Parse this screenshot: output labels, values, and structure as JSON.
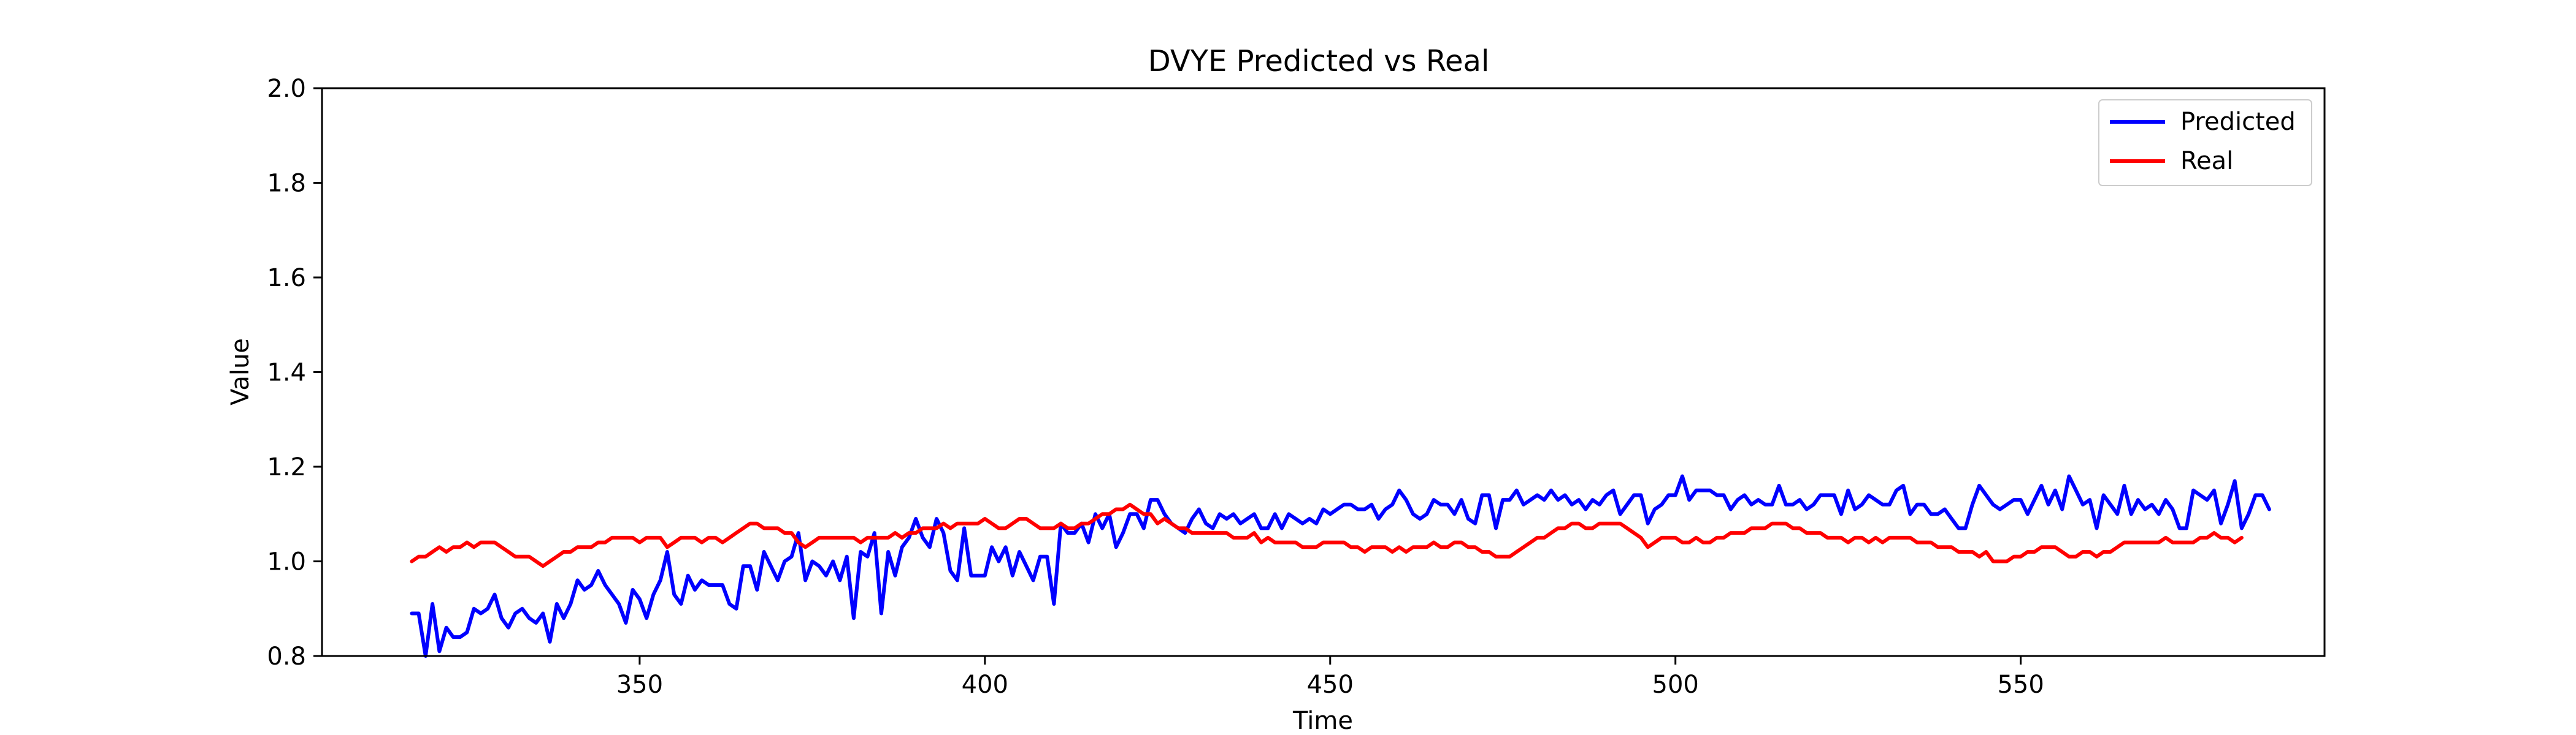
{
  "chart_data": {
    "type": "line",
    "title": "DVYE Predicted vs Real",
    "xlabel": "Time",
    "ylabel": "Value",
    "xlim": [
      304,
      594
    ],
    "ylim": [
      0.8,
      2.0
    ],
    "xticks": [
      350,
      400,
      450,
      500,
      550
    ],
    "yticks": [
      0.8,
      1.0,
      1.2,
      1.4,
      1.6,
      1.8,
      2.0
    ],
    "ytick_labels": [
      "0.8",
      "1.0",
      "1.2",
      "1.4",
      "1.6",
      "1.8",
      "2.0"
    ],
    "legend_position": "top-right",
    "grid": false,
    "x_start": 317,
    "series": [
      {
        "name": "Predicted",
        "color": "#0000ff",
        "values": [
          0.89,
          0.89,
          0.8,
          0.91,
          0.81,
          0.86,
          0.84,
          0.84,
          0.85,
          0.9,
          0.89,
          0.9,
          0.93,
          0.88,
          0.86,
          0.89,
          0.9,
          0.88,
          0.87,
          0.89,
          0.83,
          0.91,
          0.88,
          0.91,
          0.96,
          0.94,
          0.95,
          0.98,
          0.95,
          0.93,
          0.91,
          0.87,
          0.94,
          0.92,
          0.88,
          0.93,
          0.96,
          1.02,
          0.93,
          0.91,
          0.97,
          0.94,
          0.96,
          0.95,
          0.95,
          0.95,
          0.91,
          0.9,
          0.99,
          0.99,
          0.94,
          1.02,
          0.99,
          0.96,
          1.0,
          1.01,
          1.06,
          0.96,
          1.0,
          0.99,
          0.97,
          1.0,
          0.96,
          1.01,
          0.88,
          1.02,
          1.01,
          1.06,
          0.89,
          1.02,
          0.97,
          1.03,
          1.05,
          1.09,
          1.05,
          1.03,
          1.09,
          1.06,
          0.98,
          0.96,
          1.07,
          0.97,
          0.97,
          0.97,
          1.03,
          1.0,
          1.03,
          0.97,
          1.02,
          0.99,
          0.96,
          1.01,
          1.01,
          0.91,
          1.08,
          1.06,
          1.06,
          1.08,
          1.04,
          1.1,
          1.07,
          1.1,
          1.03,
          1.06,
          1.1,
          1.1,
          1.07,
          1.13,
          1.13,
          1.1,
          1.08,
          1.07,
          1.06,
          1.09,
          1.11,
          1.08,
          1.07,
          1.1,
          1.09,
          1.1,
          1.08,
          1.09,
          1.1,
          1.07,
          1.07,
          1.1,
          1.07,
          1.1,
          1.09,
          1.08,
          1.09,
          1.08,
          1.11,
          1.1,
          1.11,
          1.12,
          1.12,
          1.11,
          1.11,
          1.12,
          1.09,
          1.11,
          1.12,
          1.15,
          1.13,
          1.1,
          1.09,
          1.1,
          1.13,
          1.12,
          1.12,
          1.1,
          1.13,
          1.09,
          1.08,
          1.14,
          1.14,
          1.07,
          1.13,
          1.13,
          1.15,
          1.12,
          1.13,
          1.14,
          1.13,
          1.15,
          1.13,
          1.14,
          1.12,
          1.13,
          1.11,
          1.13,
          1.12,
          1.14,
          1.15,
          1.1,
          1.12,
          1.14,
          1.14,
          1.08,
          1.11,
          1.12,
          1.14,
          1.14,
          1.18,
          1.13,
          1.15,
          1.15,
          1.15,
          1.14,
          1.14,
          1.11,
          1.13,
          1.14,
          1.12,
          1.13,
          1.12,
          1.12,
          1.16,
          1.12,
          1.12,
          1.13,
          1.11,
          1.12,
          1.14,
          1.14,
          1.14,
          1.1,
          1.15,
          1.11,
          1.12,
          1.14,
          1.13,
          1.12,
          1.12,
          1.15,
          1.16,
          1.1,
          1.12,
          1.12,
          1.1,
          1.1,
          1.11,
          1.09,
          1.07,
          1.07,
          1.12,
          1.16,
          1.14,
          1.12,
          1.11,
          1.12,
          1.13,
          1.13,
          1.1,
          1.13,
          1.16,
          1.12,
          1.15,
          1.11,
          1.18,
          1.15,
          1.12,
          1.13,
          1.07,
          1.14,
          1.12,
          1.1,
          1.16,
          1.1,
          1.13,
          1.11,
          1.12,
          1.1,
          1.13,
          1.11,
          1.07,
          1.07,
          1.15,
          1.14,
          1.13,
          1.15,
          1.08,
          1.12,
          1.17,
          1.07,
          1.1,
          1.14,
          1.14,
          1.11
        ]
      },
      {
        "name": "Real",
        "color": "#ff0000",
        "values": [
          1.0,
          1.01,
          1.01,
          1.02,
          1.03,
          1.02,
          1.03,
          1.03,
          1.04,
          1.03,
          1.04,
          1.04,
          1.04,
          1.03,
          1.02,
          1.01,
          1.01,
          1.01,
          1.0,
          0.99,
          1.0,
          1.01,
          1.02,
          1.02,
          1.03,
          1.03,
          1.03,
          1.04,
          1.04,
          1.05,
          1.05,
          1.05,
          1.05,
          1.04,
          1.05,
          1.05,
          1.05,
          1.03,
          1.04,
          1.05,
          1.05,
          1.05,
          1.04,
          1.05,
          1.05,
          1.04,
          1.05,
          1.06,
          1.07,
          1.08,
          1.08,
          1.07,
          1.07,
          1.07,
          1.06,
          1.06,
          1.04,
          1.03,
          1.04,
          1.05,
          1.05,
          1.05,
          1.05,
          1.05,
          1.05,
          1.04,
          1.05,
          1.05,
          1.05,
          1.05,
          1.06,
          1.05,
          1.06,
          1.06,
          1.07,
          1.07,
          1.07,
          1.08,
          1.07,
          1.08,
          1.08,
          1.08,
          1.08,
          1.09,
          1.08,
          1.07,
          1.07,
          1.08,
          1.09,
          1.09,
          1.08,
          1.07,
          1.07,
          1.07,
          1.08,
          1.07,
          1.07,
          1.08,
          1.08,
          1.09,
          1.1,
          1.1,
          1.11,
          1.11,
          1.12,
          1.11,
          1.1,
          1.1,
          1.08,
          1.09,
          1.08,
          1.07,
          1.07,
          1.06,
          1.06,
          1.06,
          1.06,
          1.06,
          1.06,
          1.05,
          1.05,
          1.05,
          1.06,
          1.04,
          1.05,
          1.04,
          1.04,
          1.04,
          1.04,
          1.03,
          1.03,
          1.03,
          1.04,
          1.04,
          1.04,
          1.04,
          1.03,
          1.03,
          1.02,
          1.03,
          1.03,
          1.03,
          1.02,
          1.03,
          1.02,
          1.03,
          1.03,
          1.03,
          1.04,
          1.03,
          1.03,
          1.04,
          1.04,
          1.03,
          1.03,
          1.02,
          1.02,
          1.01,
          1.01,
          1.01,
          1.02,
          1.03,
          1.04,
          1.05,
          1.05,
          1.06,
          1.07,
          1.07,
          1.08,
          1.08,
          1.07,
          1.07,
          1.08,
          1.08,
          1.08,
          1.08,
          1.07,
          1.06,
          1.05,
          1.03,
          1.04,
          1.05,
          1.05,
          1.05,
          1.04,
          1.04,
          1.05,
          1.04,
          1.04,
          1.05,
          1.05,
          1.06,
          1.06,
          1.06,
          1.07,
          1.07,
          1.07,
          1.08,
          1.08,
          1.08,
          1.07,
          1.07,
          1.06,
          1.06,
          1.06,
          1.05,
          1.05,
          1.05,
          1.04,
          1.05,
          1.05,
          1.04,
          1.05,
          1.04,
          1.05,
          1.05,
          1.05,
          1.05,
          1.04,
          1.04,
          1.04,
          1.03,
          1.03,
          1.03,
          1.02,
          1.02,
          1.02,
          1.01,
          1.02,
          1.0,
          1.0,
          1.0,
          1.01,
          1.01,
          1.02,
          1.02,
          1.03,
          1.03,
          1.03,
          1.02,
          1.01,
          1.01,
          1.02,
          1.02,
          1.01,
          1.02,
          1.02,
          1.03,
          1.04,
          1.04,
          1.04,
          1.04,
          1.04,
          1.04,
          1.05,
          1.04,
          1.04,
          1.04,
          1.04,
          1.05,
          1.05,
          1.06,
          1.05,
          1.05,
          1.04,
          1.05
        ]
      }
    ]
  }
}
